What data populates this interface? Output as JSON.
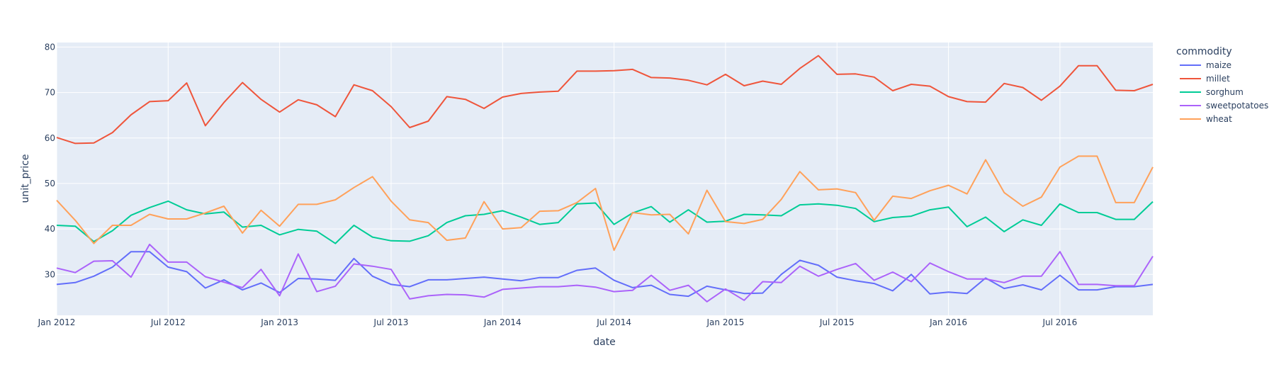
{
  "chart_data": {
    "type": "line",
    "title": "",
    "xlabel": "date",
    "ylabel": "unit_price",
    "x_tick_labels": [
      "Jan 2012",
      "Jul 2012",
      "Jan 2013",
      "Jul 2013",
      "Jan 2014",
      "Jul 2014",
      "Jan 2015",
      "Jul 2015",
      "Jan 2016",
      "Jul 2016"
    ],
    "y_ticks": [
      30,
      40,
      50,
      60,
      70,
      80
    ],
    "ylim": [
      21,
      81
    ],
    "xlim": [
      "2012-01",
      "2016-12"
    ],
    "grid": true,
    "legend": {
      "title": "commodity",
      "placement": "right"
    },
    "x": [
      "2012-01",
      "2012-02",
      "2012-03",
      "2012-04",
      "2012-05",
      "2012-06",
      "2012-07",
      "2012-08",
      "2012-09",
      "2012-10",
      "2012-11",
      "2012-12",
      "2013-01",
      "2013-02",
      "2013-03",
      "2013-04",
      "2013-05",
      "2013-06",
      "2013-07",
      "2013-08",
      "2013-09",
      "2013-10",
      "2013-11",
      "2013-12",
      "2014-01",
      "2014-02",
      "2014-03",
      "2014-04",
      "2014-05",
      "2014-06",
      "2014-07",
      "2014-08",
      "2014-09",
      "2014-10",
      "2014-11",
      "2014-12",
      "2015-01",
      "2015-02",
      "2015-03",
      "2015-04",
      "2015-05",
      "2015-06",
      "2015-07",
      "2015-08",
      "2015-09",
      "2015-10",
      "2015-11",
      "2015-12",
      "2016-01",
      "2016-02",
      "2016-03",
      "2016-04",
      "2016-05",
      "2016-06",
      "2016-07",
      "2016-08",
      "2016-09",
      "2016-10",
      "2016-11",
      "2016-12"
    ],
    "series": [
      {
        "name": "maize",
        "color": "#636efa",
        "values": [
          27.8,
          28.2,
          29.6,
          31.6,
          35.0,
          35.0,
          31.6,
          30.6,
          27.0,
          28.8,
          26.6,
          28.1,
          26.0,
          29.1,
          29.0,
          28.7,
          33.5,
          29.6,
          27.8,
          27.3,
          28.8,
          28.8,
          29.1,
          29.4,
          29.0,
          28.6,
          29.3,
          29.3,
          30.9,
          31.4,
          28.7,
          27.1,
          27.6,
          25.6,
          25.2,
          27.4,
          26.6,
          25.8,
          25.9,
          30.0,
          33.1,
          32.0,
          29.4,
          28.6,
          28.0,
          26.4,
          30.0,
          25.7,
          26.1,
          25.8,
          29.2,
          26.9,
          27.7,
          26.6,
          29.8,
          26.6,
          26.6,
          27.3,
          27.3,
          27.8
        ]
      },
      {
        "name": "millet",
        "color": "#ef553b",
        "values": [
          60.1,
          58.8,
          58.9,
          61.2,
          65.1,
          68.0,
          68.2,
          72.1,
          62.7,
          67.8,
          72.2,
          68.5,
          65.7,
          68.4,
          67.3,
          64.7,
          71.7,
          70.4,
          66.9,
          62.3,
          63.7,
          69.1,
          68.5,
          66.5,
          69.0,
          69.8,
          70.1,
          70.3,
          74.7,
          74.7,
          74.8,
          75.1,
          73.3,
          73.2,
          72.7,
          71.7,
          74.0,
          71.5,
          72.5,
          71.8,
          75.3,
          78.1,
          74.0,
          74.1,
          73.4,
          70.4,
          71.8,
          71.4,
          69.1,
          68.0,
          67.9,
          72.0,
          71.1,
          68.3,
          71.4,
          75.9,
          75.9,
          70.5,
          70.4,
          71.8
        ]
      },
      {
        "name": "sorghum",
        "color": "#00cc96",
        "values": [
          40.8,
          40.6,
          37.2,
          39.6,
          43.0,
          44.7,
          46.1,
          44.2,
          43.3,
          43.7,
          40.4,
          40.8,
          38.7,
          39.9,
          39.5,
          36.8,
          40.8,
          38.2,
          37.4,
          37.3,
          38.5,
          41.4,
          42.9,
          43.2,
          44.0,
          42.6,
          41.0,
          41.4,
          45.5,
          45.7,
          41.0,
          43.5,
          44.9,
          41.5,
          44.2,
          41.5,
          41.7,
          43.2,
          43.1,
          42.9,
          45.3,
          45.5,
          45.2,
          44.5,
          41.6,
          42.5,
          42.8,
          44.2,
          44.8,
          40.5,
          42.6,
          39.4,
          42.0,
          40.8,
          45.5,
          43.6,
          43.6,
          42.1,
          42.1,
          46.0
        ]
      },
      {
        "name": "sweetpotatoes",
        "color": "#ab63fa",
        "values": [
          31.4,
          30.4,
          32.9,
          33.0,
          29.4,
          36.6,
          32.7,
          32.7,
          29.5,
          28.3,
          27.1,
          31.1,
          25.3,
          34.5,
          26.2,
          27.4,
          32.3,
          31.8,
          31.1,
          24.6,
          25.3,
          25.6,
          25.5,
          25.0,
          26.7,
          27.0,
          27.3,
          27.3,
          27.6,
          27.2,
          26.2,
          26.5,
          29.8,
          26.5,
          27.6,
          24.0,
          26.8,
          24.3,
          28.4,
          28.2,
          31.8,
          29.6,
          31.1,
          32.4,
          28.7,
          30.5,
          28.4,
          32.5,
          30.6,
          29.0,
          29.0,
          28.2,
          29.6,
          29.6,
          35.0,
          27.8,
          27.8,
          27.5,
          27.5,
          34.0
        ]
      },
      {
        "name": "wheat",
        "color": "#ffa15a",
        "values": [
          46.3,
          41.9,
          36.8,
          40.8,
          40.8,
          43.2,
          42.2,
          42.2,
          43.5,
          45.0,
          39.1,
          44.1,
          40.6,
          45.4,
          45.4,
          46.4,
          49.1,
          51.5,
          46.1,
          42.0,
          41.4,
          37.5,
          38.0,
          46.0,
          40.0,
          40.3,
          43.9,
          44.0,
          45.8,
          48.9,
          35.3,
          43.6,
          43.1,
          43.2,
          38.9,
          48.5,
          41.6,
          41.2,
          42.1,
          46.5,
          52.6,
          48.6,
          48.8,
          48.0,
          41.9,
          47.2,
          46.7,
          48.4,
          49.6,
          47.7,
          55.2,
          48.0,
          45.0,
          47.0,
          53.6,
          56.0,
          56.0,
          45.8,
          45.8,
          53.6
        ]
      }
    ]
  }
}
